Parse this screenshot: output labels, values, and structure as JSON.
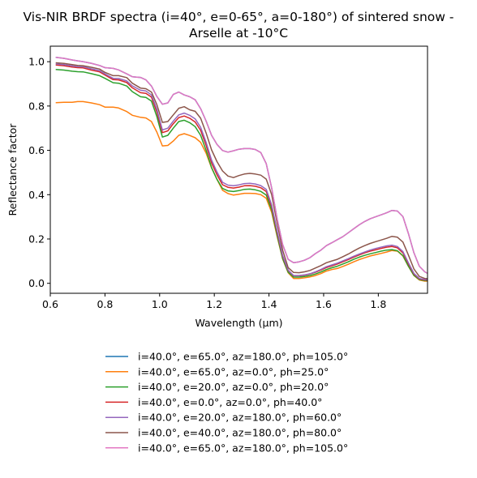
{
  "chart_data": {
    "type": "line",
    "title_line1": "Vis-NIR BRDF spectra (i=40°, e=0-65°, a=0-180°) of sintered snow -",
    "title_line2": "Arselle at -10°C",
    "xlabel": "Wavelength (μm)",
    "ylabel": "Reflectance factor",
    "xlim": [
      0.6,
      1.98
    ],
    "ylim": [
      -0.045,
      1.07
    ],
    "xticks": [
      0.6,
      0.8,
      1.0,
      1.2,
      1.4,
      1.6,
      1.8
    ],
    "xtick_labels": [
      "0.6",
      "0.8",
      "1.0",
      "1.2",
      "1.4",
      "1.6",
      "1.8"
    ],
    "yticks": [
      0.0,
      0.2,
      0.4,
      0.6,
      0.8,
      1.0
    ],
    "ytick_labels": [
      "0.0",
      "0.2",
      "0.4",
      "0.6",
      "0.8",
      "1.0"
    ],
    "grid": false,
    "legend_placement": "below-center",
    "x": [
      0.62,
      0.65,
      0.68,
      0.7,
      0.72,
      0.75,
      0.78,
      0.8,
      0.83,
      0.85,
      0.88,
      0.9,
      0.93,
      0.95,
      0.97,
      0.99,
      1.01,
      1.03,
      1.05,
      1.07,
      1.09,
      1.11,
      1.13,
      1.15,
      1.17,
      1.19,
      1.21,
      1.23,
      1.25,
      1.27,
      1.29,
      1.31,
      1.33,
      1.35,
      1.37,
      1.39,
      1.41,
      1.43,
      1.45,
      1.47,
      1.49,
      1.51,
      1.53,
      1.55,
      1.57,
      1.59,
      1.61,
      1.63,
      1.65,
      1.67,
      1.69,
      1.71,
      1.73,
      1.75,
      1.77,
      1.79,
      1.81,
      1.83,
      1.85,
      1.87,
      1.89,
      1.91,
      1.93,
      1.95,
      1.97,
      1.98
    ],
    "series": [
      {
        "name": "i=40.0°, e=65.0°, az=180.0°, ph=105.0°",
        "color": "#1f77b4",
        "values": [
          1.02,
          1.015,
          1.008,
          1.004,
          1.0,
          0.993,
          0.983,
          0.973,
          0.97,
          0.963,
          0.945,
          0.932,
          0.929,
          0.918,
          0.89,
          0.843,
          0.808,
          0.814,
          0.852,
          0.863,
          0.85,
          0.842,
          0.828,
          0.788,
          0.732,
          0.668,
          0.627,
          0.599,
          0.592,
          0.598,
          0.605,
          0.608,
          0.608,
          0.604,
          0.59,
          0.54,
          0.43,
          0.29,
          0.175,
          0.108,
          0.093,
          0.097,
          0.104,
          0.116,
          0.134,
          0.15,
          0.17,
          0.183,
          0.197,
          0.21,
          0.228,
          0.246,
          0.264,
          0.279,
          0.291,
          0.3,
          0.309,
          0.318,
          0.329,
          0.326,
          0.301,
          0.225,
          0.138,
          0.077,
          0.052,
          0.045
        ]
      },
      {
        "name": "i=40.0°, e=65.0°, az=0.0°, ph=25.0°",
        "color": "#ff7f0e",
        "values": [
          0.815,
          0.817,
          0.817,
          0.82,
          0.82,
          0.814,
          0.806,
          0.795,
          0.795,
          0.791,
          0.775,
          0.758,
          0.749,
          0.746,
          0.73,
          0.682,
          0.62,
          0.622,
          0.642,
          0.668,
          0.675,
          0.667,
          0.657,
          0.636,
          0.587,
          0.521,
          0.469,
          0.42,
          0.405,
          0.398,
          0.402,
          0.406,
          0.406,
          0.405,
          0.4,
          0.384,
          0.32,
          0.21,
          0.11,
          0.048,
          0.022,
          0.022,
          0.025,
          0.029,
          0.035,
          0.044,
          0.055,
          0.062,
          0.067,
          0.076,
          0.086,
          0.097,
          0.107,
          0.115,
          0.123,
          0.129,
          0.135,
          0.141,
          0.148,
          0.145,
          0.123,
          0.077,
          0.035,
          0.015,
          0.01,
          0.01
        ]
      },
      {
        "name": "i=40.0°, e=20.0°, az=0.0°, ph=20.0°",
        "color": "#2ca02c",
        "values": [
          0.965,
          0.962,
          0.957,
          0.955,
          0.954,
          0.946,
          0.937,
          0.925,
          0.905,
          0.903,
          0.89,
          0.865,
          0.842,
          0.839,
          0.822,
          0.752,
          0.66,
          0.668,
          0.7,
          0.73,
          0.736,
          0.725,
          0.707,
          0.668,
          0.6,
          0.522,
          0.469,
          0.428,
          0.417,
          0.414,
          0.418,
          0.424,
          0.425,
          0.422,
          0.415,
          0.398,
          0.33,
          0.215,
          0.112,
          0.05,
          0.028,
          0.028,
          0.031,
          0.035,
          0.042,
          0.051,
          0.062,
          0.07,
          0.077,
          0.087,
          0.097,
          0.108,
          0.118,
          0.126,
          0.133,
          0.139,
          0.145,
          0.15,
          0.152,
          0.147,
          0.125,
          0.078,
          0.036,
          0.017,
          0.012,
          0.012
        ]
      },
      {
        "name": "i=40.0°, e=0.0°, az=0.0°, ph=40.0°",
        "color": "#d62728",
        "values": [
          0.985,
          0.982,
          0.976,
          0.973,
          0.972,
          0.962,
          0.954,
          0.94,
          0.919,
          0.918,
          0.906,
          0.882,
          0.86,
          0.857,
          0.84,
          0.772,
          0.68,
          0.688,
          0.72,
          0.748,
          0.755,
          0.745,
          0.728,
          0.69,
          0.622,
          0.543,
          0.49,
          0.445,
          0.433,
          0.43,
          0.434,
          0.44,
          0.441,
          0.438,
          0.431,
          0.414,
          0.345,
          0.228,
          0.122,
          0.058,
          0.034,
          0.034,
          0.037,
          0.042,
          0.05,
          0.06,
          0.071,
          0.079,
          0.087,
          0.097,
          0.107,
          0.118,
          0.128,
          0.137,
          0.145,
          0.151,
          0.157,
          0.163,
          0.166,
          0.16,
          0.137,
          0.088,
          0.042,
          0.02,
          0.015,
          0.015
        ]
      },
      {
        "name": "i=40.0°, e=20.0°, az=180.0°, ph=60.0°",
        "color": "#9467bd",
        "values": [
          0.99,
          0.987,
          0.981,
          0.978,
          0.977,
          0.968,
          0.96,
          0.945,
          0.925,
          0.924,
          0.913,
          0.891,
          0.871,
          0.868,
          0.85,
          0.785,
          0.692,
          0.7,
          0.732,
          0.76,
          0.768,
          0.758,
          0.742,
          0.704,
          0.636,
          0.556,
          0.502,
          0.456,
          0.443,
          0.44,
          0.444,
          0.45,
          0.451,
          0.448,
          0.441,
          0.424,
          0.354,
          0.235,
          0.126,
          0.06,
          0.035,
          0.035,
          0.038,
          0.043,
          0.052,
          0.063,
          0.075,
          0.083,
          0.091,
          0.101,
          0.111,
          0.122,
          0.132,
          0.141,
          0.15,
          0.157,
          0.163,
          0.169,
          0.172,
          0.166,
          0.143,
          0.093,
          0.045,
          0.022,
          0.017,
          0.017
        ]
      },
      {
        "name": "i=40.0°, e=40.0°, az=180.0°, ph=80.0°",
        "color": "#8c564b",
        "values": [
          0.995,
          0.992,
          0.987,
          0.983,
          0.982,
          0.975,
          0.967,
          0.952,
          0.937,
          0.937,
          0.928,
          0.903,
          0.881,
          0.878,
          0.863,
          0.806,
          0.726,
          0.73,
          0.76,
          0.79,
          0.797,
          0.783,
          0.776,
          0.745,
          0.678,
          0.602,
          0.549,
          0.507,
          0.484,
          0.477,
          0.486,
          0.493,
          0.496,
          0.493,
          0.488,
          0.47,
          0.4,
          0.271,
          0.15,
          0.071,
          0.049,
          0.048,
          0.052,
          0.058,
          0.069,
          0.08,
          0.093,
          0.101,
          0.108,
          0.12,
          0.132,
          0.146,
          0.159,
          0.17,
          0.18,
          0.188,
          0.195,
          0.203,
          0.212,
          0.208,
          0.186,
          0.128,
          0.065,
          0.031,
          0.022,
          0.021
        ]
      },
      {
        "name": "i=40.0°, e=65.0°, az=180.0°, ph=105.0°",
        "color": "#e377c2",
        "values": [
          1.02,
          1.015,
          1.008,
          1.004,
          1.0,
          0.993,
          0.983,
          0.973,
          0.97,
          0.963,
          0.945,
          0.932,
          0.929,
          0.918,
          0.89,
          0.843,
          0.808,
          0.814,
          0.852,
          0.863,
          0.85,
          0.842,
          0.828,
          0.788,
          0.732,
          0.668,
          0.627,
          0.599,
          0.592,
          0.598,
          0.605,
          0.608,
          0.608,
          0.604,
          0.59,
          0.54,
          0.43,
          0.29,
          0.175,
          0.108,
          0.093,
          0.097,
          0.104,
          0.116,
          0.134,
          0.15,
          0.17,
          0.183,
          0.197,
          0.21,
          0.228,
          0.246,
          0.264,
          0.279,
          0.291,
          0.3,
          0.309,
          0.318,
          0.329,
          0.326,
          0.301,
          0.225,
          0.138,
          0.077,
          0.052,
          0.045
        ]
      }
    ]
  }
}
